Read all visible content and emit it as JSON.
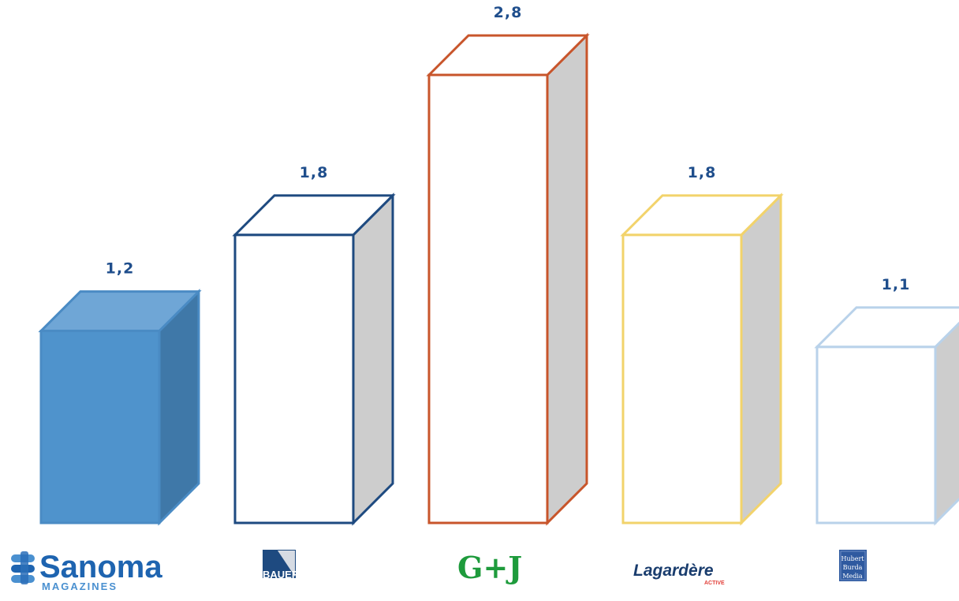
{
  "chart_data": {
    "type": "bar",
    "title": "",
    "xlabel": "",
    "ylabel": "",
    "ylim": [
      0,
      2.8
    ],
    "grid": false,
    "legend": "none",
    "label_color": "#1f4e8c",
    "categories": [
      "Sanoma Magazines",
      "Bauer",
      "G+J",
      "Lagardère Active",
      "Hubert Burda Media"
    ],
    "values": [
      1.2,
      1.8,
      2.8,
      1.8,
      1.1
    ],
    "value_labels": [
      "1,2",
      "1,8",
      "2,8",
      "1,8",
      "1,1"
    ],
    "bar_styles": [
      {
        "fill": "#4f93cc",
        "top": "#6fa6d6",
        "side": "#3f78a8",
        "stroke": "#4a8bc4"
      },
      {
        "fill": "#ffffff",
        "top": "#ffffff",
        "side": "#cdcdcd",
        "stroke": "#1e4a80"
      },
      {
        "fill": "#ffffff",
        "top": "#ffffff",
        "side": "#cdcdcd",
        "stroke": "#c8552b"
      },
      {
        "fill": "#ffffff",
        "top": "#ffffff",
        "side": "#cdcdcd",
        "stroke": "#f2d36b"
      },
      {
        "fill": "#ffffff",
        "top": "#ffffff",
        "side": "#cdcdcd",
        "stroke": "#b9d2ea"
      }
    ]
  },
  "logos": {
    "sanoma": {
      "name": "Sanoma",
      "sub": "MAGAZINES",
      "color": "#1e64b0"
    },
    "bauer": {
      "name": "BAUER",
      "color": "#1e4a80"
    },
    "gj": {
      "name": "G+J",
      "color": "#1e9b3c"
    },
    "lagardere": {
      "name": "Lagardère",
      "sub": "ACTIVE",
      "color": "#1a3d6e"
    },
    "burda": {
      "line1": "Hubert",
      "line2": "Burda",
      "line3": "Media",
      "color": "#2f5aa0"
    }
  }
}
